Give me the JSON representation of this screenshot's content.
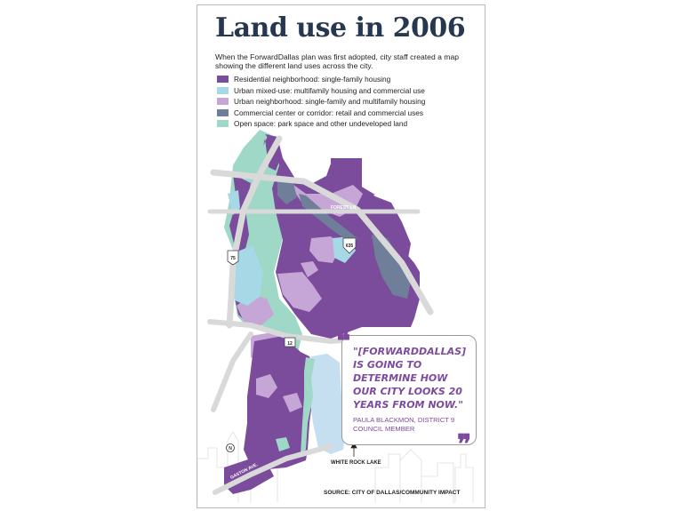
{
  "title": "Land use in 2006",
  "intro": "When the ForwardDallas plan was first adopted, city staff created a map showing the different land uses across the city.",
  "legend": [
    {
      "label": "Residential neighborhood: single-family housing",
      "color": "#7b4b9c"
    },
    {
      "label": "Urban mixed-use: multifamily housing and commercial use",
      "color": "#a6d8e6"
    },
    {
      "label": "Urban neighborhood: single-family and multifamily housing",
      "color": "#c6a6d6"
    },
    {
      "label": "Commercial center or corridor: retail and commercial uses",
      "color": "#6f7f9a"
    },
    {
      "label": "Open space: park space and other undeveloped land",
      "color": "#9fd8c6"
    }
  ],
  "map": {
    "road_labels": {
      "forest_ln": "FOREST LN.",
      "i635": "635",
      "us75": "75",
      "sh12": "12",
      "gaston": "GASTON AVE."
    },
    "north_label": "N",
    "lake_label": "WHITE ROCK LAKE"
  },
  "quote": {
    "text": "\"[FORWARDDALLAS] IS GOING TO DETERMINE HOW OUR CITY LOOKS 20 YEARS FROM NOW.\"",
    "attribution": "PAULA BLACKMON, DISTRICT 9 COUNCIL MEMBER"
  },
  "source": "SOURCE: CITY OF DALLAS/COMMUNITY IMPACT"
}
